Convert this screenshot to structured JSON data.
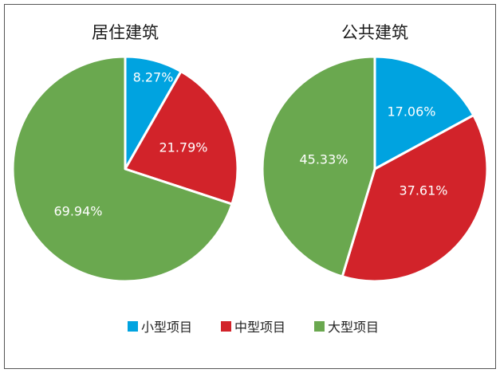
{
  "chart_data": [
    {
      "type": "pie",
      "title": "居住建筑",
      "categories": [
        "小型项目",
        "中型项目",
        "大型项目"
      ],
      "values": [
        8.27,
        21.79,
        69.94
      ],
      "labels": [
        "8.27%",
        "21.79%",
        "69.94%"
      ]
    },
    {
      "type": "pie",
      "title": "公共建筑",
      "categories": [
        "小型项目",
        "中型项目",
        "大型项目"
      ],
      "values": [
        17.06,
        37.61,
        45.33
      ],
      "labels": [
        "17.06%",
        "37.61%",
        "45.33%"
      ]
    }
  ],
  "legend": {
    "position": "bottom",
    "items": [
      {
        "label": "小型项目",
        "color": "#00a3e0"
      },
      {
        "label": "中型项目",
        "color": "#d2232a"
      },
      {
        "label": "大型项目",
        "color": "#6aa84f"
      }
    ]
  },
  "colors": [
    "#00a3e0",
    "#d2232a",
    "#6aa84f"
  ]
}
